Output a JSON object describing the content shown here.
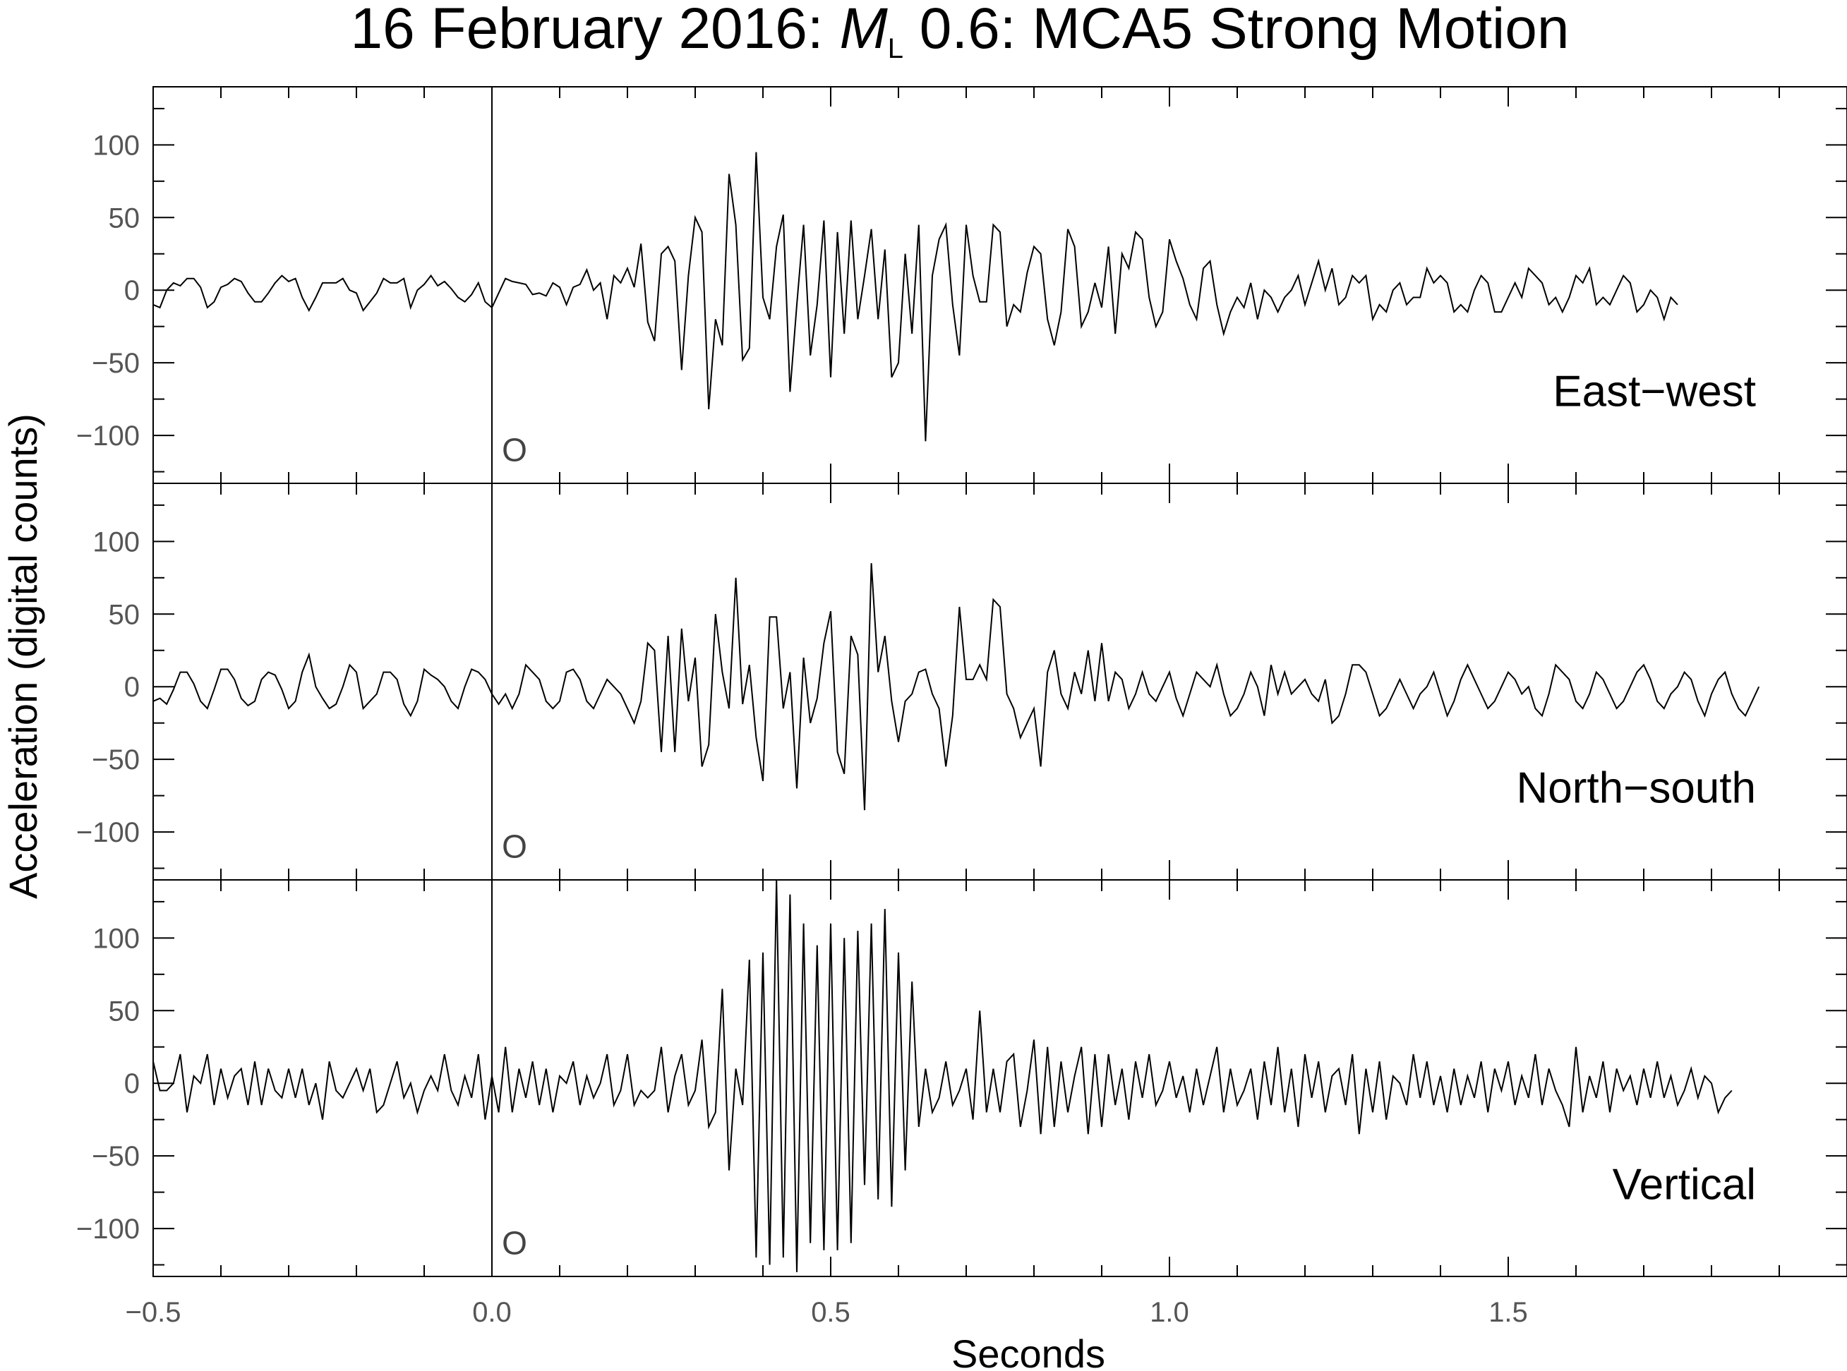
{
  "chart_data": {
    "type": "line",
    "title_main": "16 February 2016: ",
    "title_mag_symbol": "M",
    "title_mag_sub": "L",
    "title_rest": " 0.6: MCA5 Strong Motion",
    "xlabel": "Seconds",
    "ylabel": "Acceleration (digital counts)",
    "xlim": [
      -0.5,
      2.0
    ],
    "ylim": [
      -133,
      140
    ],
    "x_ticks": [
      -0.5,
      0.0,
      0.5,
      1.0,
      1.5
    ],
    "x_tick_labels": [
      "−0.5",
      "0.0",
      "0.5",
      "1.0",
      "1.5"
    ],
    "y_ticks": [
      -100,
      -50,
      0,
      50,
      100
    ],
    "y_tick_labels": [
      "−100",
      "−50",
      "0",
      "50",
      "100"
    ],
    "origin_marker": {
      "x": 0.0,
      "label": "O"
    },
    "line_color": "#000000",
    "series": [
      {
        "name": "East−west",
        "x_start": -0.5,
        "dt": 0.01,
        "values": [
          -10,
          -12,
          0,
          5,
          3,
          8,
          8,
          2,
          -12,
          -8,
          2,
          4,
          8,
          6,
          -2,
          -8,
          -8,
          -2,
          5,
          10,
          6,
          8,
          -5,
          -14,
          -5,
          5,
          5,
          5,
          8,
          0,
          -2,
          -14,
          -8,
          -2,
          8,
          5,
          5,
          8,
          -12,
          0,
          4,
          10,
          3,
          6,
          1,
          -5,
          -8,
          -3,
          5,
          -8,
          -12,
          -2,
          8,
          6,
          5,
          4,
          -3,
          -2,
          -4,
          5,
          2,
          -10,
          2,
          4,
          14,
          0,
          5,
          -20,
          10,
          5,
          15,
          2,
          32,
          -22,
          -35,
          25,
          30,
          20,
          -55,
          10,
          50,
          40,
          -82,
          -20,
          -38,
          80,
          45,
          -48,
          -40,
          95,
          -5,
          -20,
          30,
          52,
          -70,
          -10,
          45,
          -45,
          -10,
          48,
          -60,
          40,
          -30,
          48,
          -20,
          10,
          42,
          -20,
          28,
          -60,
          -50,
          25,
          -30,
          45,
          -104,
          10,
          35,
          45,
          -10,
          -45,
          45,
          10,
          -8,
          -8,
          45,
          40,
          -25,
          -10,
          -15,
          12,
          30,
          25,
          -20,
          -38,
          -15,
          42,
          30,
          -25,
          -15,
          5,
          -12,
          30,
          -30,
          25,
          15,
          40,
          35,
          -5,
          -25,
          -15,
          35,
          20,
          8,
          -10,
          -20,
          15,
          20,
          -10,
          -30,
          -15,
          -5,
          -12,
          5,
          -20,
          0,
          -5,
          -15,
          -5,
          0,
          10,
          -10,
          5,
          20,
          0,
          15,
          -10,
          -5,
          10,
          5,
          10,
          -20,
          -10,
          -15,
          0,
          5,
          -10,
          -5,
          -5,
          15,
          5,
          10,
          5,
          -15,
          -10,
          -15,
          0,
          10,
          5,
          -15,
          -15,
          -5,
          5,
          -5,
          15,
          10,
          5,
          -10,
          -5,
          -15,
          -5,
          10,
          5,
          15,
          -10,
          -5,
          -10,
          0,
          10,
          5,
          -15,
          -10,
          0,
          -5,
          -20,
          -5,
          -10
        ]
      },
      {
        "name": "North−south",
        "x_start": -0.5,
        "dt": 0.01,
        "values": [
          -10,
          -8,
          -12,
          -2,
          10,
          10,
          2,
          -10,
          -15,
          -2,
          12,
          12,
          5,
          -8,
          -13,
          -10,
          5,
          10,
          8,
          -2,
          -15,
          -10,
          10,
          22,
          0,
          -8,
          -15,
          -12,
          0,
          15,
          10,
          -15,
          -10,
          -5,
          10,
          10,
          5,
          -12,
          -20,
          -10,
          12,
          8,
          5,
          0,
          -10,
          -15,
          0,
          12,
          10,
          5,
          -5,
          -12,
          -5,
          -15,
          -5,
          15,
          10,
          5,
          -10,
          -15,
          -10,
          10,
          12,
          5,
          -10,
          -15,
          -5,
          5,
          0,
          -5,
          -15,
          -25,
          -10,
          30,
          25,
          -45,
          35,
          -45,
          40,
          -10,
          20,
          -55,
          -40,
          50,
          10,
          -15,
          75,
          -12,
          15,
          -35,
          -65,
          48,
          48,
          -15,
          10,
          -70,
          20,
          -25,
          -8,
          30,
          52,
          -45,
          -60,
          35,
          22,
          -85,
          85,
          10,
          35,
          -10,
          -38,
          -10,
          -5,
          10,
          12,
          -5,
          -15,
          -55,
          -20,
          55,
          5,
          5,
          15,
          5,
          60,
          55,
          -5,
          -15,
          -35,
          -25,
          -15,
          -55,
          10,
          25,
          -5,
          -15,
          10,
          -5,
          25,
          -10,
          30,
          -10,
          10,
          5,
          -15,
          -5,
          10,
          -5,
          -10,
          0,
          10,
          -8,
          -20,
          -5,
          10,
          5,
          0,
          15,
          -5,
          -20,
          -15,
          -5,
          10,
          0,
          -20,
          15,
          -5,
          10,
          -5,
          0,
          5,
          -5,
          -10,
          5,
          -25,
          -20,
          -5,
          15,
          15,
          10,
          -5,
          -20,
          -15,
          -5,
          5,
          -5,
          -15,
          -5,
          0,
          10,
          -5,
          -20,
          -10,
          5,
          15,
          5,
          -5,
          -15,
          -10,
          0,
          10,
          5,
          -5,
          0,
          -15,
          -20,
          -5,
          15,
          10,
          5,
          -10,
          -15,
          -5,
          10,
          5,
          -5,
          -15,
          -10,
          0,
          10,
          15,
          5,
          -10,
          -15,
          -5,
          0,
          10,
          5,
          -10,
          -20,
          -5,
          5,
          10,
          -5,
          -15,
          -20,
          -10,
          0
        ]
      },
      {
        "name": "Vertical",
        "x_start": -0.5,
        "dt": 0.01,
        "values": [
          15,
          -5,
          -5,
          0,
          20,
          -20,
          5,
          0,
          20,
          -15,
          10,
          -10,
          5,
          10,
          -15,
          15,
          -15,
          10,
          -5,
          -10,
          10,
          -10,
          10,
          -15,
          0,
          -25,
          15,
          -5,
          -10,
          0,
          10,
          -5,
          10,
          -20,
          -15,
          0,
          15,
          -10,
          0,
          -20,
          -5,
          5,
          -5,
          20,
          -5,
          -15,
          5,
          -10,
          20,
          -25,
          5,
          -20,
          25,
          -20,
          10,
          -10,
          15,
          -15,
          10,
          -20,
          5,
          0,
          15,
          -15,
          5,
          -10,
          0,
          20,
          -15,
          -5,
          20,
          -15,
          -5,
          -10,
          -5,
          25,
          -20,
          5,
          20,
          -15,
          -5,
          30,
          -30,
          -20,
          65,
          -60,
          10,
          -15,
          85,
          -120,
          90,
          -125,
          140,
          -120,
          130,
          -130,
          110,
          -110,
          95,
          -115,
          110,
          -115,
          100,
          -110,
          105,
          -70,
          110,
          -80,
          120,
          -85,
          90,
          -60,
          70,
          -30,
          10,
          -20,
          -10,
          15,
          -15,
          -5,
          10,
          -25,
          50,
          -20,
          10,
          -20,
          15,
          20,
          -30,
          -5,
          30,
          -35,
          25,
          -30,
          15,
          -20,
          5,
          25,
          -35,
          20,
          -30,
          20,
          -15,
          10,
          -25,
          15,
          -10,
          20,
          -15,
          -5,
          15,
          -10,
          5,
          -20,
          10,
          -15,
          5,
          25,
          -20,
          10,
          -15,
          -5,
          10,
          -25,
          15,
          -15,
          25,
          -20,
          10,
          -30,
          20,
          -10,
          15,
          -20,
          5,
          10,
          -15,
          20,
          -35,
          10,
          -20,
          15,
          -25,
          5,
          0,
          -15,
          20,
          -10,
          15,
          -15,
          5,
          -20,
          10,
          -15,
          5,
          -10,
          15,
          -20,
          10,
          -5,
          15,
          -15,
          5,
          -10,
          20,
          -15,
          10,
          -5,
          -15,
          -30,
          25,
          -20,
          5,
          -10,
          15,
          -20,
          10,
          -5,
          5,
          -15,
          10,
          -10,
          15,
          -10,
          5,
          -15,
          -5,
          10,
          -10,
          5,
          0,
          -20,
          -10,
          -5
        ]
      }
    ]
  }
}
